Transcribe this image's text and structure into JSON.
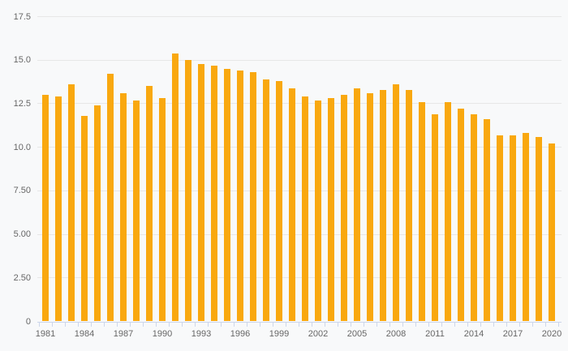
{
  "chart_data": {
    "type": "bar",
    "title": "",
    "xlabel": "",
    "ylabel": "",
    "x": [
      1981,
      1982,
      1983,
      1984,
      1985,
      1986,
      1987,
      1988,
      1989,
      1990,
      1991,
      1992,
      1993,
      1994,
      1995,
      1996,
      1997,
      1998,
      1999,
      2000,
      2001,
      2002,
      2003,
      2004,
      2005,
      2006,
      2007,
      2008,
      2009,
      2010,
      2011,
      2012,
      2013,
      2014,
      2015,
      2016,
      2017,
      2018,
      2019,
      2020
    ],
    "values": [
      13.0,
      12.9,
      13.6,
      11.8,
      12.4,
      14.2,
      13.1,
      12.7,
      13.5,
      12.8,
      15.4,
      15.0,
      14.8,
      14.7,
      14.5,
      14.4,
      14.3,
      13.9,
      13.8,
      13.4,
      12.9,
      12.7,
      12.8,
      13.0,
      13.4,
      13.1,
      13.3,
      13.6,
      13.3,
      12.6,
      11.9,
      12.6,
      12.2,
      11.9,
      11.6,
      10.7,
      10.7,
      10.8,
      10.6,
      10.2
    ],
    "ylim": [
      0,
      17.5
    ],
    "ytick_step": 2.5,
    "ytick_labels": [
      "0",
      "2.50",
      "5.00",
      "7.50",
      "10.0",
      "12.5",
      "15.0",
      "17.5"
    ],
    "xtick_labels": [
      "1981",
      "1984",
      "1987",
      "1990",
      "1993",
      "1996",
      "1999",
      "2002",
      "2005",
      "2008",
      "2011",
      "2014",
      "2017",
      "2020"
    ],
    "grid": true,
    "legend": false,
    "colors": {
      "bar": "#F9A80F",
      "background": "#F8F9FA",
      "gridline": "#E7E7E7",
      "axis_line": "#CCD6EB",
      "tick": "#CCD6EB",
      "label": "#666666"
    }
  }
}
